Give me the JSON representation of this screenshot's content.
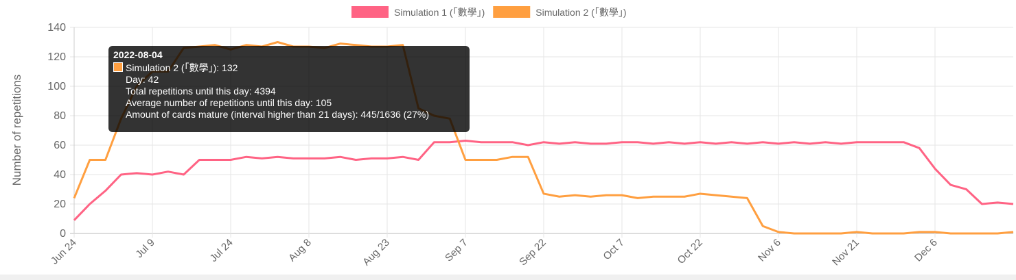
{
  "chart_data": {
    "type": "line",
    "y_label": "Number of repetitions",
    "categories": [
      "Jun 24",
      null,
      null,
      null,
      null,
      "Jul 9",
      null,
      null,
      null,
      null,
      "Jul 24",
      null,
      null,
      null,
      null,
      "Aug 8",
      null,
      null,
      null,
      null,
      "Aug 23",
      null,
      null,
      null,
      null,
      "Sep 7",
      null,
      null,
      null,
      null,
      "Sep 22",
      null,
      null,
      null,
      null,
      "Oct 7",
      null,
      null,
      null,
      null,
      "Oct 22",
      null,
      null,
      null,
      null,
      "Nov 6",
      null,
      null,
      null,
      null,
      "Nov 21",
      null,
      null,
      null,
      null,
      "Dec 6",
      null,
      null,
      null,
      null,
      null
    ],
    "series": [
      {
        "name": "Simulation 1 (「數學」)",
        "color": "#ff6384",
        "values": [
          9,
          20,
          29,
          40,
          41,
          40,
          42,
          40,
          50,
          50,
          50,
          52,
          51,
          52,
          51,
          51,
          51,
          52,
          50,
          51,
          51,
          52,
          50,
          62,
          62,
          63,
          62,
          62,
          62,
          60,
          62,
          61,
          62,
          61,
          61,
          62,
          62,
          61,
          62,
          61,
          62,
          61,
          62,
          61,
          62,
          61,
          62,
          61,
          62,
          61,
          62,
          62,
          62,
          62,
          58,
          44,
          33,
          30,
          20,
          21,
          20
        ]
      },
      {
        "name": "Simulation 2 (「數學」)",
        "color": "#ff9f40",
        "values": [
          24,
          50,
          50,
          78,
          100,
          110,
          110,
          126,
          127,
          128,
          125,
          128,
          127,
          130,
          127,
          127,
          126,
          129,
          128,
          127,
          127,
          128,
          85,
          80,
          78,
          50,
          50,
          50,
          52,
          52,
          27,
          25,
          26,
          25,
          26,
          26,
          24,
          25,
          25,
          25,
          27,
          26,
          25,
          24,
          5,
          1,
          0,
          0,
          0,
          0,
          1,
          0,
          0,
          0,
          1,
          1,
          0,
          0,
          0,
          0,
          1
        ]
      }
    ],
    "ylim": [
      0,
      140
    ],
    "yticks": [
      0,
      20,
      40,
      60,
      80,
      100,
      120,
      140
    ],
    "grid": true,
    "tooltip": {
      "title": "2022-08-04",
      "lines": [
        "Simulation 2 (「數學」): 132",
        "Day: 42",
        "Total repetitions until this day: 4394",
        "Average number of repetitions until this day: 105",
        "Amount of cards mature (interval higher than 21 days): 445/1636 (27%)"
      ]
    }
  }
}
